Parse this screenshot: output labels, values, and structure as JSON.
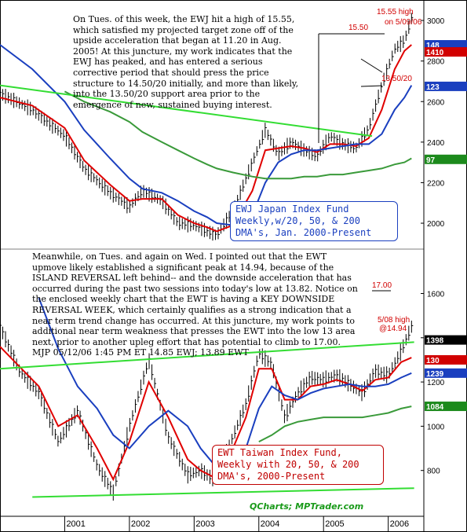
{
  "notes": {
    "top": "On Tues. of this week, the EWJ hit a high of 15.55, which satisfied my projected target zone off of the upside acceleration that began at 11.20 in Aug. 2005! At this juncture, my work indicates that the EWJ has peaked, and has entered a serious corrective period that should press the price structure to 14.50/20 initially, and more than likely, into the 13.50/20 support area prior to the emergence of new, sustained buying interest.",
    "middle": "Meanwhile, on Tues. and again on Wed. I pointed out that the EWT upmove likely established a significant peak at 14.94, because of the ISLAND REVERSAL left behind-- and the downside acceleration that has occurred during the past two sessions into today's low at 13.82. Notice on the enclosed weekly chart that the EWT is having a KEY DOWNSIDE REVERSAL WEEK, which certainly qualifies as a strong indication that a near term trend change has occurred. At this juncture, my work points to additional near term weakness that presses the EWT into the low 13 area next, prior to another upleg effort that has potential to climb to 17.00.",
    "signature": "MJP 05/12/06 1:45 PM ET 14.85 EWJ; 13.89 EWT"
  },
  "credit": "QCharts; MPTrader.com",
  "chart_data": [
    {
      "type": "line",
      "title": "EWJ Japan Index Fund Weekly,w/20, 50, & 200 DMA's, Jan. 2000-Present",
      "x_labels": [
        "2001",
        "2002",
        "2003",
        "2004",
        "2005",
        "2006"
      ],
      "y_ticks": [
        2000,
        2200,
        2400,
        2600,
        2800,
        3000
      ],
      "ylim": [
        1880,
        3070
      ],
      "price_tags": [
        {
          "label": "148",
          "color": "#1a3fbf",
          "value": 2880
        },
        {
          "label": "1410",
          "color": "#d10000",
          "value": 2845
        },
        {
          "label": "123",
          "color": "#1a3fbf",
          "value": 2675
        },
        {
          "label": "97",
          "color": "#1c8a1c",
          "value": 2315
        }
      ],
      "annotations": [
        "15.50",
        "15.55 high on 5/09/06",
        "13.50/20"
      ],
      "x": [
        2000.0,
        2000.5,
        2001.0,
        2001.3,
        2001.7,
        2002.0,
        2002.2,
        2002.5,
        2002.75,
        2003.0,
        2003.2,
        2003.35,
        2003.6,
        2003.9,
        2004.1,
        2004.3,
        2004.5,
        2004.7,
        2004.9,
        2005.1,
        2005.3,
        2005.5,
        2005.7,
        2005.9,
        2006.1,
        2006.25,
        2006.36
      ],
      "series": [
        {
          "name": "EWJ",
          "color": "#000000",
          "values": [
            2640,
            2560,
            2430,
            2270,
            2150,
            2080,
            2160,
            2110,
            2000,
            1990,
            1960,
            1940,
            2060,
            2300,
            2460,
            2340,
            2400,
            2360,
            2330,
            2430,
            2390,
            2370,
            2470,
            2680,
            2860,
            2900,
            3010
          ]
        },
        {
          "name": "20 DMA",
          "color": "#e00000",
          "values": [
            2620,
            2580,
            2470,
            2310,
            2190,
            2110,
            2120,
            2120,
            2040,
            2000,
            1980,
            1960,
            1990,
            2160,
            2360,
            2370,
            2380,
            2370,
            2350,
            2390,
            2390,
            2380,
            2420,
            2560,
            2760,
            2850,
            2880
          ]
        },
        {
          "name": "50 DMA",
          "color": "#1a3fbf",
          "values": [
            2880,
            2760,
            2600,
            2460,
            2320,
            2220,
            2170,
            2150,
            2110,
            2060,
            2030,
            2000,
            1990,
            2040,
            2200,
            2300,
            2340,
            2360,
            2360,
            2370,
            2380,
            2390,
            2390,
            2440,
            2560,
            2620,
            2680
          ]
        },
        {
          "name": "200 DMA",
          "color": "#3a9a3a",
          "values": [
            null,
            null,
            2650,
            2600,
            2550,
            2500,
            2450,
            2400,
            2360,
            2320,
            2290,
            2270,
            2250,
            2230,
            2220,
            2220,
            2220,
            2230,
            2230,
            2240,
            2240,
            2250,
            2260,
            2270,
            2290,
            2300,
            2320
          ]
        }
      ],
      "trendline": {
        "x": [
          2000.0,
          2005.75
        ],
        "values": [
          2680,
          2430
        ]
      }
    },
    {
      "type": "line",
      "title": "EWT Taiwan Index Fund, Weekly with 20, 50, & 200 DMA's, 2000-Present",
      "x_labels": [
        "2001",
        "2002",
        "2003",
        "2004",
        "2005",
        "2006"
      ],
      "y_ticks": [
        800,
        1000,
        1200,
        1400,
        1600
      ],
      "ylim": [
        600,
        1790
      ],
      "price_tags": [
        {
          "label": "1398",
          "color": "#000000",
          "value": 1390
        },
        {
          "label": "130",
          "color": "#d10000",
          "value": 1300
        },
        {
          "label": "1239",
          "color": "#1a3fbf",
          "value": 1240
        },
        {
          "label": "1084",
          "color": "#1c8a1c",
          "value": 1090
        }
      ],
      "annotations": [
        "17.00",
        "5/08 high @14.94"
      ],
      "x": [
        2000.0,
        2000.3,
        2000.6,
        2000.9,
        2001.2,
        2001.5,
        2001.75,
        2002.0,
        2002.3,
        2002.6,
        2002.9,
        2003.1,
        2003.3,
        2003.5,
        2003.8,
        2004.0,
        2004.2,
        2004.4,
        2004.6,
        2004.8,
        2005.0,
        2005.2,
        2005.4,
        2005.6,
        2005.8,
        2006.0,
        2006.2,
        2006.36
      ],
      "series": [
        {
          "name": "EWT",
          "color": "#000000",
          "values": [
            1450,
            1250,
            1150,
            930,
            1070,
            820,
            700,
            1000,
            1300,
            950,
            780,
            800,
            760,
            880,
            1100,
            1330,
            1280,
            1040,
            1150,
            1220,
            1210,
            1230,
            1190,
            1150,
            1250,
            1230,
            1340,
            1450
          ]
        },
        {
          "name": "20 DMA",
          "color": "#e00000",
          "values": [
            1360,
            1270,
            1180,
            1000,
            1050,
            900,
            760,
            930,
            1200,
            1040,
            850,
            800,
            770,
            830,
            1040,
            1260,
            1260,
            1120,
            1120,
            1180,
            1190,
            1210,
            1190,
            1160,
            1210,
            1220,
            1290,
            1310
          ]
        },
        {
          "name": "50 DMA",
          "color": "#1a3fbf",
          "values": [
            null,
            null,
            1580,
            1350,
            1180,
            1080,
            960,
            900,
            1000,
            1070,
            1000,
            900,
            830,
            820,
            900,
            1080,
            1180,
            1140,
            1120,
            1150,
            1170,
            1180,
            1190,
            1180,
            1180,
            1190,
            1220,
            1240
          ]
        },
        {
          "name": "200 DMA",
          "color": "#3a9a3a",
          "values": [
            null,
            null,
            null,
            null,
            null,
            null,
            null,
            null,
            null,
            null,
            null,
            null,
            null,
            null,
            null,
            930,
            960,
            1000,
            1020,
            1030,
            1040,
            1040,
            1040,
            1040,
            1050,
            1060,
            1080,
            1090
          ]
        }
      ],
      "trendlines": [
        {
          "x": [
            2000.0,
            2006.4
          ],
          "values": [
            1260,
            1380
          ]
        },
        {
          "x": [
            2000.5,
            2006.4
          ],
          "values": [
            680,
            720
          ]
        }
      ]
    }
  ]
}
